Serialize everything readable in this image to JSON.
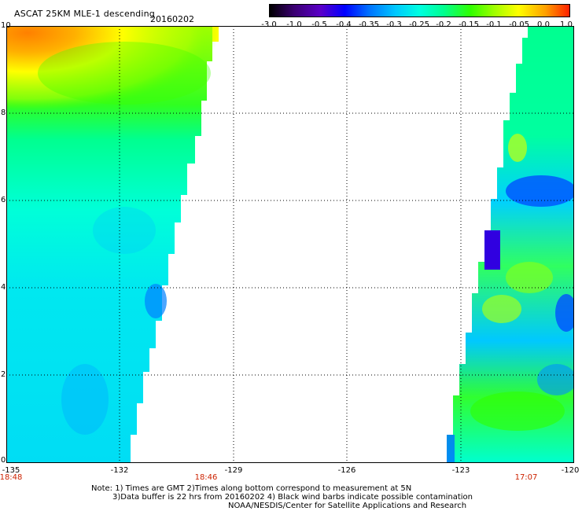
{
  "header": {
    "title": "ASCAT 25KM MLE-1 descending",
    "date": "20160202"
  },
  "colorbar": {
    "labels": [
      "-3.0",
      "-1.0",
      "-0.5",
      "-0.4",
      "-0.35",
      "-0.3",
      "-0.25",
      "-0.2",
      "-0.15",
      "-0.1",
      "-0.05",
      "0.0",
      "1.0"
    ],
    "colors": [
      "#000000",
      "#3a0070",
      "#5a00c8",
      "#0000ff",
      "#0070ff",
      "#00c8ff",
      "#00ffe0",
      "#00ff90",
      "#30ff00",
      "#a0ff00",
      "#ffff00",
      "#ffa000",
      "#ff2000"
    ]
  },
  "axes": {
    "y_ticks": [
      "10",
      "8",
      "6",
      "4",
      "2",
      "0"
    ],
    "x_ticks": [
      "-135",
      "-132",
      "-129",
      "-126",
      "-123",
      "-120"
    ],
    "times": [
      "18:48",
      "18:46",
      "17:07"
    ]
  },
  "notes": [
    "Note: 1) Times are GMT 2)Times along bottom correspond to measurement at 5N",
    "3)Data buffer is 22 hrs from 20160202 4) Black wind barbs indicate possible contamination",
    "NOAA/NESDIS/Center for Satellite Applications and Research"
  ]
}
